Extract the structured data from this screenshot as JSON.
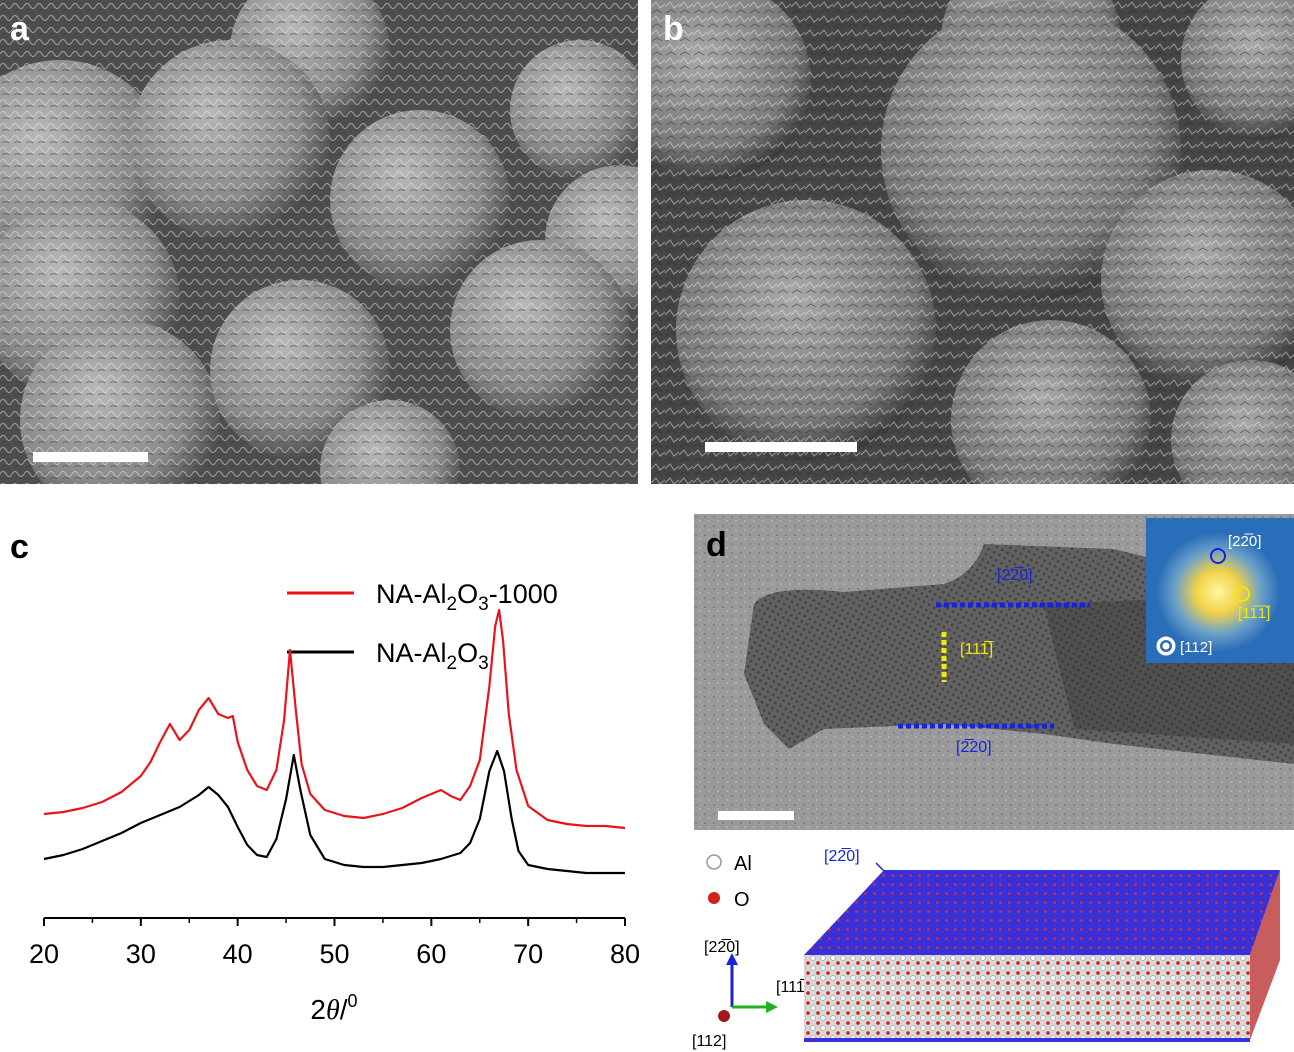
{
  "panels": {
    "a": {
      "letter": "a"
    },
    "b": {
      "letter": "b"
    },
    "c": {
      "letter": "c"
    },
    "d": {
      "letter": "d"
    }
  },
  "tem": {
    "label_top": "[22̅0]",
    "label_mid": "[111̅]",
    "label_bottom": "[2̅20]"
  },
  "fft": {
    "label_220": "[22̅0]",
    "label_111": "[11̅1̅]",
    "label_112": "[112]"
  },
  "model": {
    "legend_al": "Al",
    "legend_o": "O",
    "axis_up": "[22̅0]",
    "axis_right": "[111̅]",
    "axis_out": "[112]",
    "slab_direction": "[22̅0]"
  },
  "colors": {
    "series_red": "#e8141b",
    "series_black": "#000000",
    "dash_blue": "#1a24d6",
    "dash_yellow": "#f2ea00",
    "slab_top": "#3a30d8",
    "axis_green": "#22b022"
  },
  "chart_data": {
    "type": "line",
    "xlabel": "2θ/⁰",
    "xlim": [
      20,
      80
    ],
    "xticks": [
      20,
      30,
      40,
      50,
      60,
      70,
      80
    ],
    "legend_position": "top-right",
    "grid": false,
    "series": [
      {
        "name": "NA-Al2O3-1000",
        "color": "#e8141b",
        "x": [
          20,
          22,
          24,
          26,
          28,
          30,
          31,
          32,
          33,
          34,
          35,
          36,
          37,
          38,
          39,
          39.5,
          40,
          41,
          42,
          43,
          44,
          44.8,
          45.4,
          46,
          46.6,
          47.5,
          49,
          51,
          53,
          55,
          57,
          59,
          61,
          62,
          63,
          64,
          65,
          66,
          66.6,
          67,
          67.4,
          68,
          68.8,
          70,
          72,
          74,
          76,
          78,
          80
        ],
        "y": [
          0.08,
          0.09,
          0.11,
          0.14,
          0.19,
          0.27,
          0.34,
          0.44,
          0.53,
          0.45,
          0.5,
          0.6,
          0.66,
          0.58,
          0.56,
          0.57,
          0.44,
          0.3,
          0.22,
          0.2,
          0.3,
          0.55,
          0.9,
          0.6,
          0.33,
          0.18,
          0.1,
          0.07,
          0.06,
          0.08,
          0.11,
          0.16,
          0.2,
          0.17,
          0.15,
          0.22,
          0.35,
          0.72,
          1.02,
          1.1,
          0.95,
          0.58,
          0.3,
          0.12,
          0.05,
          0.03,
          0.02,
          0.02,
          0.01
        ]
      },
      {
        "name": "NA-Al2O3",
        "color": "#000000",
        "x": [
          20,
          22,
          24,
          26,
          28,
          30,
          32,
          34,
          36,
          37,
          38,
          39,
          40,
          41,
          42,
          43,
          44,
          45,
          45.8,
          46.5,
          47.5,
          49,
          51,
          53,
          55,
          57,
          59,
          61,
          63,
          64,
          65,
          66,
          66.8,
          67.5,
          68.3,
          69,
          70,
          72,
          74,
          76,
          78,
          80
        ],
        "y": [
          0.08,
          0.1,
          0.13,
          0.17,
          0.21,
          0.26,
          0.3,
          0.34,
          0.4,
          0.44,
          0.4,
          0.34,
          0.24,
          0.15,
          0.1,
          0.09,
          0.18,
          0.38,
          0.6,
          0.42,
          0.2,
          0.08,
          0.05,
          0.04,
          0.04,
          0.05,
          0.06,
          0.08,
          0.11,
          0.16,
          0.28,
          0.52,
          0.62,
          0.52,
          0.28,
          0.12,
          0.05,
          0.03,
          0.02,
          0.01,
          0.01,
          0.01
        ]
      }
    ]
  }
}
